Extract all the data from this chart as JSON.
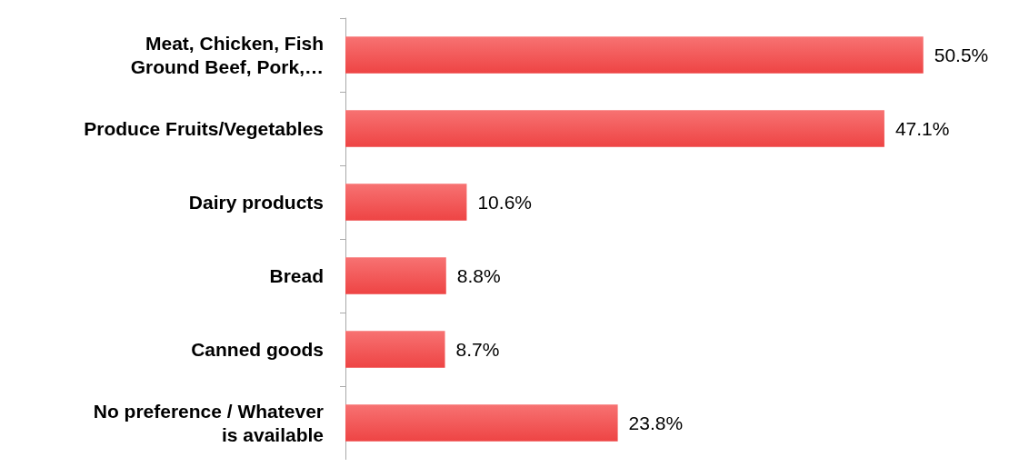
{
  "chart_data": {
    "type": "bar",
    "orientation": "horizontal",
    "categories": [
      "Meat, Chicken, Fish\nGround Beef, Pork,…",
      "Produce Fruits/Vegetables",
      "Dairy products",
      "Bread",
      "Canned goods",
      "No preference / Whatever\nis available"
    ],
    "values": [
      50.5,
      47.1,
      10.6,
      8.8,
      8.7,
      23.8
    ],
    "value_labels": [
      "50.5%",
      "47.1%",
      "10.6%",
      "8.8%",
      "8.7%",
      "23.8%"
    ],
    "color": "#ee4444"
  }
}
